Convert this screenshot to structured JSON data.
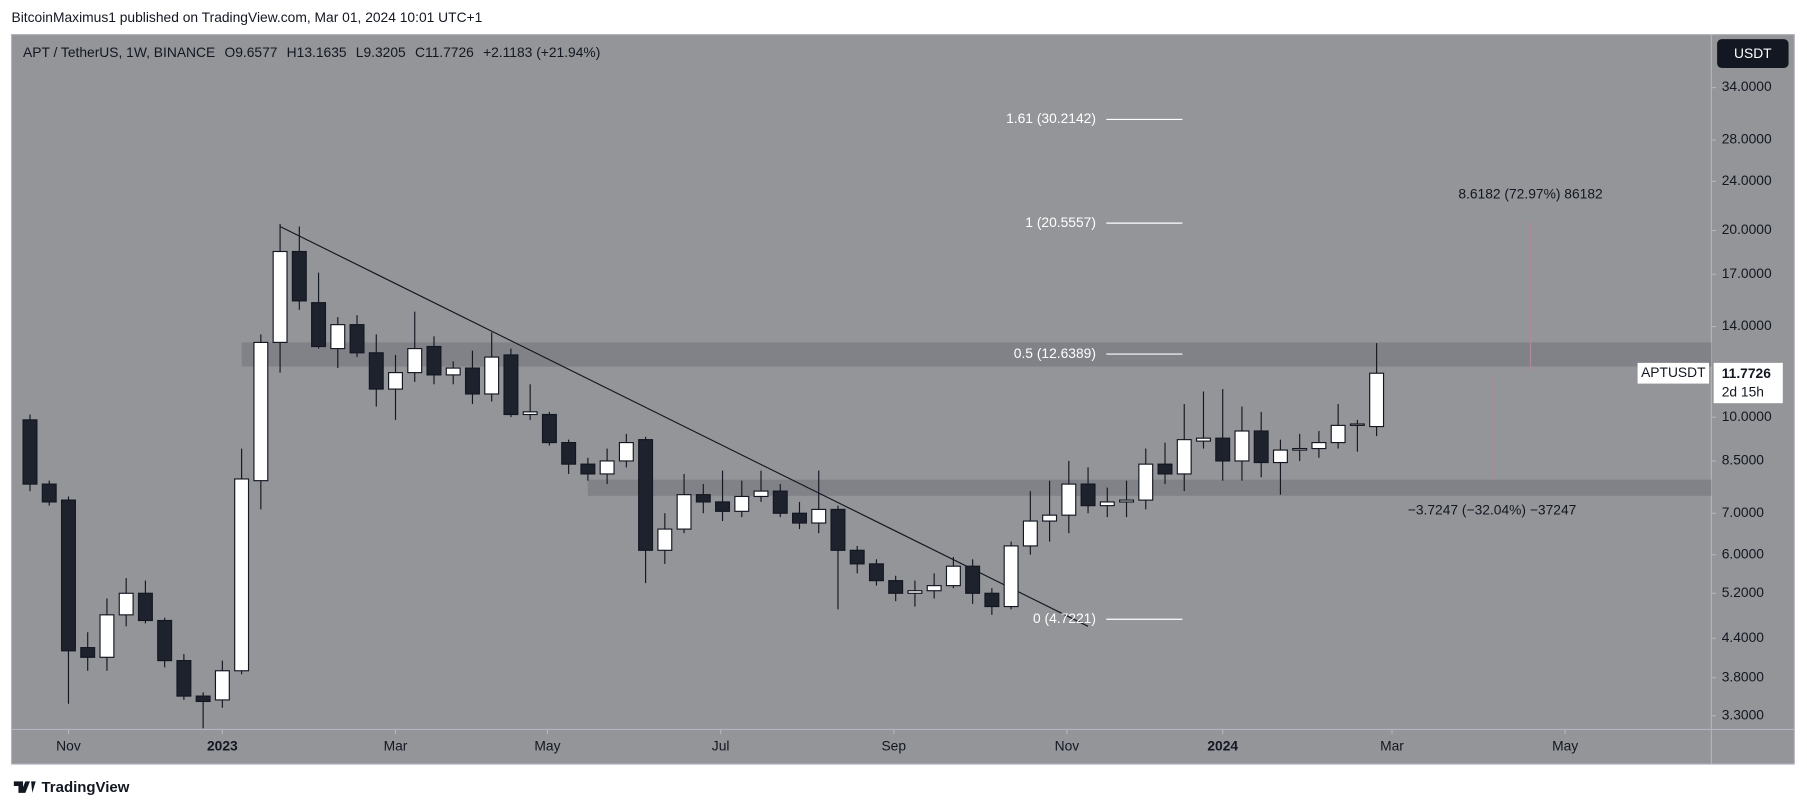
{
  "publisher": "BitcoinMaximus1 published on TradingView.com, Mar 01, 2024 10:01 UTC+1",
  "footer": "TradingView",
  "currency_button": "USDT",
  "header": {
    "symbol": "APT / TetherUS, 1W, BINANCE",
    "o_label": "O",
    "h_label": "H",
    "l_label": "L",
    "c_label": "C",
    "change": "+2.1183 (+21.94%)"
  },
  "price_tag": {
    "name": "APTUSDT",
    "countdown": "2d 15h"
  },
  "chart_data": {
    "type": "candlestick",
    "log_scale": true,
    "grid": false,
    "up_color": "#ffffff",
    "down_color": "#1e222d",
    "xlim": [
      -0.96,
      87.4
    ],
    "xticks": [
      {
        "value": 2,
        "label": "Nov"
      },
      {
        "value": 10,
        "label": "2023"
      },
      {
        "value": 19,
        "label": "Mar"
      },
      {
        "value": 26.9,
        "label": "May"
      },
      {
        "value": 35.9,
        "label": "Jul"
      },
      {
        "value": 44.9,
        "label": "Sep"
      },
      {
        "value": 53.9,
        "label": "Nov"
      },
      {
        "value": 62,
        "label": "2024"
      },
      {
        "value": 70.8,
        "label": "Mar"
      },
      {
        "value": 79.8,
        "label": "May"
      }
    ],
    "ylim": [
      3.136,
      41.4
    ],
    "yticks": [
      {
        "value": 34,
        "label": "34.0000"
      },
      {
        "value": 28,
        "label": "28.0000"
      },
      {
        "value": 24,
        "label": "24.0000"
      },
      {
        "value": 20,
        "label": "20.0000"
      },
      {
        "value": 17,
        "label": "17.0000"
      },
      {
        "value": 14,
        "label": "14.0000"
      },
      {
        "value": 10,
        "label": "10.0000"
      },
      {
        "value": 8.5,
        "label": "8.5000"
      },
      {
        "value": 7,
        "label": "7.0000"
      },
      {
        "value": 6,
        "label": "6.0000"
      },
      {
        "value": 5.2,
        "label": "5.2000"
      },
      {
        "value": 4.4,
        "label": "4.4000"
      },
      {
        "value": 3.8,
        "label": "3.8000"
      },
      {
        "value": 3.3,
        "label": "3.3000"
      }
    ],
    "open": [
      9.9,
      7.8,
      7.35,
      4.25,
      4.1,
      4.8,
      5.2,
      4.7,
      4.05,
      3.55,
      3.5,
      3.9,
      7.9,
      13.2,
      18.5,
      15.3,
      12.9,
      14.1,
      12.7,
      11.1,
      11.8,
      13.0,
      11.7,
      12.0,
      10.9,
      12.6,
      10.1,
      10.1,
      9.1,
      8.4,
      8.1,
      8.5,
      9.2,
      6.1,
      6.6,
      7.5,
      7.3,
      7.05,
      7.45,
      7.6,
      7.0,
      6.75,
      7.1,
      6.1,
      5.8,
      5.45,
      5.2,
      5.25,
      5.35,
      5.75,
      5.2,
      4.95,
      6.2,
      6.8,
      6.95,
      7.8,
      7.2,
      7.3,
      7.35,
      8.4,
      8.1,
      9.15,
      9.25,
      8.5,
      9.5,
      8.45,
      8.85,
      8.9,
      9.1,
      9.7,
      9.6577
    ],
    "high": [
      10.1,
      7.9,
      7.45,
      4.5,
      5.1,
      5.5,
      5.45,
      4.75,
      4.15,
      3.6,
      4.05,
      8.9,
      13.6,
      20.5,
      20.3,
      17.1,
      14.5,
      14.6,
      13.6,
      12.6,
      14.8,
      13.5,
      12.3,
      12.8,
      13.7,
      12.9,
      11.3,
      10.2,
      9.2,
      8.6,
      8.9,
      9.4,
      9.3,
      7.0,
      8.1,
      7.8,
      8.2,
      7.9,
      8.2,
      7.8,
      7.3,
      8.2,
      7.2,
      6.2,
      5.9,
      5.55,
      5.45,
      5.6,
      5.95,
      5.9,
      5.3,
      6.3,
      7.6,
      7.9,
      8.5,
      8.3,
      7.7,
      7.9,
      8.9,
      9.1,
      10.5,
      11.0,
      11.1,
      10.4,
      10.2,
      9.2,
      9.4,
      9.5,
      10.5,
      9.9,
      13.1635
    ],
    "low": [
      7.6,
      7.2,
      3.45,
      3.9,
      3.9,
      4.6,
      4.65,
      3.95,
      3.5,
      3.15,
      3.4,
      3.85,
      7.1,
      11.8,
      14.9,
      12.9,
      12.0,
      12.5,
      10.4,
      9.9,
      11.4,
      11.3,
      11.3,
      10.5,
      10.6,
      10.0,
      9.9,
      9.0,
      8.1,
      7.9,
      7.8,
      8.3,
      5.4,
      5.8,
      6.5,
      7.0,
      6.8,
      6.9,
      7.3,
      6.9,
      6.6,
      6.5,
      4.9,
      5.6,
      5.35,
      5.05,
      4.95,
      5.1,
      5.3,
      5.0,
      4.8,
      4.9,
      6.0,
      6.3,
      6.5,
      7.0,
      6.9,
      6.9,
      7.1,
      7.8,
      7.6,
      8.9,
      7.9,
      7.9,
      8.0,
      7.5,
      8.5,
      8.6,
      8.9,
      8.8,
      9.3205
    ],
    "close": [
      7.8,
      7.3,
      4.2,
      4.1,
      4.8,
      5.2,
      4.7,
      4.05,
      3.55,
      3.48,
      3.9,
      7.95,
      13.2,
      18.5,
      15.4,
      13.0,
      14.1,
      12.7,
      11.1,
      11.8,
      12.9,
      11.7,
      12.0,
      10.9,
      12.5,
      10.1,
      10.2,
      9.1,
      8.4,
      8.1,
      8.5,
      9.1,
      6.1,
      6.6,
      7.5,
      7.3,
      7.05,
      7.45,
      7.6,
      7.0,
      6.75,
      7.1,
      6.1,
      5.8,
      5.45,
      5.2,
      5.25,
      5.35,
      5.75,
      5.2,
      4.95,
      6.2,
      6.8,
      6.95,
      7.8,
      7.2,
      7.3,
      7.35,
      8.4,
      8.1,
      9.2,
      9.25,
      8.5,
      9.5,
      8.45,
      8.85,
      8.9,
      9.1,
      9.7,
      9.75,
      11.7726
    ],
    "zones": [
      {
        "from": 11.0,
        "low": 12.07,
        "high": 13.2
      },
      {
        "from": 29.0,
        "low": 7.47,
        "high": 7.93
      }
    ],
    "trendline": {
      "x": [
        13,
        55
      ],
      "y": [
        20.3,
        4.6
      ]
    },
    "fib_levels": [
      {
        "label": "1.61 (30.2142)",
        "value": 30.2142
      },
      {
        "label": "1 (20.5557)",
        "value": 20.5557
      },
      {
        "label": "0.5 (12.6389)",
        "value": 12.6389
      },
      {
        "label": "0 (4.7221)",
        "value": 4.7221
      }
    ],
    "measures": [
      {
        "label": "8.6182 (72.97%) 86182",
        "x": 78,
        "from": 11.9,
        "to": 20.6
      },
      {
        "label": "−3.7247 (−32.04%) −37247",
        "x": 76,
        "from": 11.6,
        "to": 7.9
      }
    ]
  }
}
